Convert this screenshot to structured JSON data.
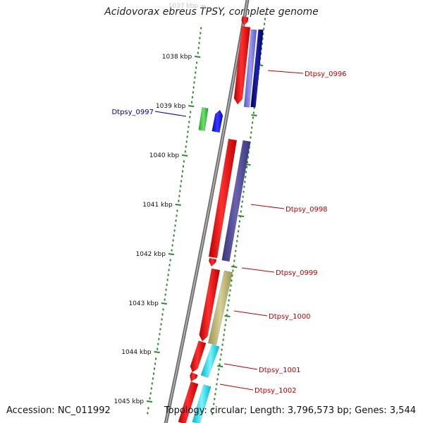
{
  "title": "Acidovorax ebreus TPSY, complete genome",
  "accession": "Accession: NC_011992",
  "summary": "Topology: circular; Length: 3,796,573 bp; Genes: 3,544",
  "colors": {
    "backbone": "#8a8a8a",
    "tick": "#2a8a2a",
    "label_forward": "#c00000",
    "label_reverse": "#00009c"
  },
  "scale_labels": [
    {
      "label": "1037 kbp",
      "faded": true
    },
    {
      "label": "1038 kbp",
      "faded": false
    },
    {
      "label": "1039 kbp",
      "faded": false
    },
    {
      "label": "1040 kbp",
      "faded": false
    },
    {
      "label": "1041 kbp",
      "faded": false
    },
    {
      "label": "1042 kbp",
      "faded": false
    },
    {
      "label": "1043 kbp",
      "faded": false
    },
    {
      "label": "1044 kbp",
      "faded": false
    },
    {
      "label": "1045 kbp",
      "faded": false
    }
  ],
  "gene_labels": [
    {
      "name": "Dtpsy_0996",
      "strand": "forward"
    },
    {
      "name": "Dtpsy_0997",
      "strand": "reverse"
    },
    {
      "name": "Dtpsy_0998",
      "strand": "forward"
    },
    {
      "name": "Dtpsy_0999",
      "strand": "forward"
    },
    {
      "name": "Dtpsy_1000",
      "strand": "forward"
    },
    {
      "name": "Dtpsy_1001",
      "strand": "forward"
    },
    {
      "name": "Dtpsy_1002",
      "strand": "forward"
    }
  ]
}
